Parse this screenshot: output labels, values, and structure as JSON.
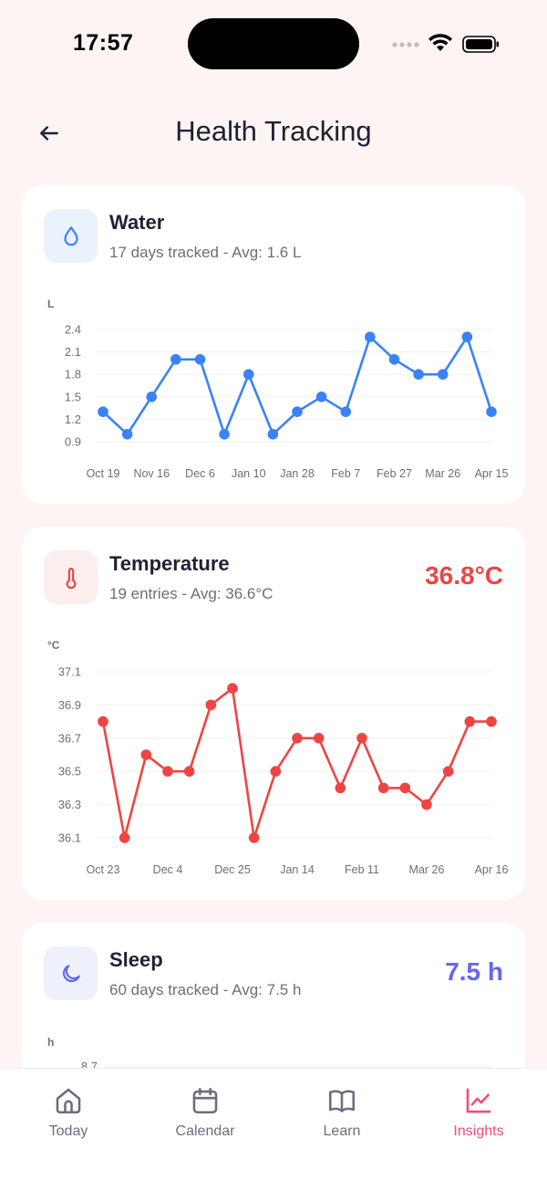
{
  "status_bar": {
    "time": "17:57"
  },
  "header": {
    "title": "Health Tracking"
  },
  "cards": [
    {
      "id": "water",
      "title": "Water",
      "subtitle": "17 days tracked - Avg: 1.6 L",
      "value": "",
      "icon": "droplet-icon",
      "accent": "#3b82f6",
      "icon_bg": "#eaf2fe",
      "chart_data": {
        "type": "line",
        "unit_label": "L",
        "yticks": [
          "2.4",
          "2.1",
          "1.8",
          "1.5",
          "1.2",
          "0.9"
        ],
        "ylim": [
          0.9,
          2.4
        ],
        "xticks": [
          "Oct 19",
          "Nov 16",
          "Dec 6",
          "Jan 10",
          "Jan 28",
          "Feb 7",
          "Feb 27",
          "Mar 26",
          "Apr 15"
        ],
        "values": [
          1.3,
          1.0,
          1.5,
          2.0,
          2.0,
          1.0,
          1.8,
          1.0,
          1.3,
          1.5,
          1.3,
          2.3,
          2.0,
          1.8,
          1.8,
          2.3,
          1.3
        ]
      }
    },
    {
      "id": "temperature",
      "title": "Temperature",
      "subtitle": "19 entries - Avg: 36.6°C",
      "value": "36.8°C",
      "icon": "thermometer-icon",
      "accent": "#ef4444",
      "icon_bg": "#fdeeee",
      "chart_data": {
        "type": "line",
        "unit_label": "°C",
        "yticks": [
          "37.1",
          "36.9",
          "36.7",
          "36.5",
          "36.3",
          "36.1"
        ],
        "ylim": [
          36.1,
          37.1
        ],
        "xticks": [
          "Oct 23",
          "Dec 4",
          "Dec 25",
          "Jan 14",
          "Feb 11",
          "Mar 26",
          "Apr 16"
        ],
        "values": [
          36.8,
          36.1,
          36.6,
          36.5,
          36.5,
          36.9,
          37.0,
          36.1,
          36.5,
          36.7,
          36.7,
          36.4,
          36.7,
          36.4,
          36.4,
          36.3,
          36.5,
          36.8,
          36.8
        ]
      }
    },
    {
      "id": "sleep",
      "title": "Sleep",
      "subtitle": "60 days tracked - Avg: 7.5 h",
      "value": "7.5 h",
      "icon": "moon-icon",
      "accent": "#6366f1",
      "icon_bg": "#eef0fd",
      "chart_data": {
        "type": "line",
        "unit_label": "h",
        "yticks": [
          "8.7"
        ]
      }
    }
  ],
  "bottom_nav": {
    "items": [
      {
        "label": "Today",
        "icon": "home-icon",
        "active": false
      },
      {
        "label": "Calendar",
        "icon": "calendar-icon",
        "active": false
      },
      {
        "label": "Learn",
        "icon": "book-icon",
        "active": false
      },
      {
        "label": "Insights",
        "icon": "chart-line-icon",
        "active": true
      }
    ],
    "active_color": "#ee4d7d",
    "inactive_color": "#6b6e7d"
  }
}
